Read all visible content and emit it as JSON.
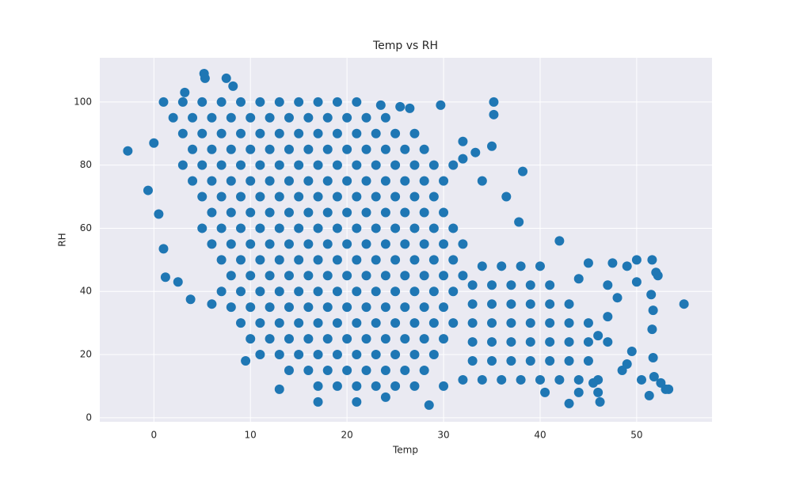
{
  "chart_data": {
    "type": "scatter",
    "title": "Temp vs RH",
    "x_label": "Temp",
    "y_label": "RH",
    "color": "#1f77b4",
    "grid": true,
    "xlim": [
      -5.6,
      57.8
    ],
    "ylim": [
      -1.3,
      114
    ],
    "xticks": [
      0,
      10,
      20,
      30,
      40,
      50
    ],
    "yticks": [
      0,
      20,
      40,
      60,
      80,
      100
    ],
    "x": [
      1,
      3,
      5,
      7,
      9,
      11,
      13,
      15,
      17,
      19,
      21,
      2,
      4,
      6,
      8,
      10,
      12,
      14,
      16,
      18,
      20,
      22,
      24,
      3,
      5,
      7,
      9,
      11,
      13,
      15,
      17,
      19,
      21,
      23,
      25,
      27,
      4,
      6,
      8,
      10,
      12,
      14,
      16,
      18,
      20,
      22,
      24,
      26,
      28,
      3,
      5,
      7,
      9,
      11,
      13,
      15,
      17,
      19,
      21,
      23,
      25,
      27,
      29,
      4,
      6,
      8,
      10,
      12,
      14,
      16,
      18,
      20,
      22,
      24,
      26,
      28,
      30,
      5,
      7,
      9,
      11,
      13,
      15,
      17,
      19,
      21,
      23,
      25,
      27,
      29,
      6,
      8,
      10,
      12,
      14,
      16,
      18,
      20,
      22,
      24,
      26,
      28,
      30,
      5,
      7,
      9,
      11,
      13,
      15,
      17,
      19,
      21,
      23,
      25,
      27,
      29,
      31,
      6,
      8,
      10,
      12,
      14,
      16,
      18,
      20,
      22,
      24,
      26,
      28,
      30,
      32,
      7,
      9,
      11,
      13,
      15,
      17,
      19,
      21,
      23,
      25,
      27,
      29,
      31,
      8,
      10,
      12,
      14,
      16,
      18,
      20,
      22,
      24,
      26,
      28,
      30,
      32,
      7,
      9,
      11,
      13,
      15,
      17,
      19,
      21,
      23,
      25,
      27,
      29,
      31,
      8,
      10,
      12,
      14,
      16,
      18,
      20,
      22,
      24,
      26,
      28,
      30,
      9,
      11,
      13,
      15,
      17,
      19,
      21,
      23,
      25,
      27,
      29,
      31,
      10,
      12,
      14,
      16,
      18,
      20,
      22,
      24,
      26,
      28,
      30,
      11,
      13,
      15,
      17,
      19,
      21,
      23,
      25,
      27,
      29,
      14,
      16,
      18,
      20,
      22,
      24,
      26,
      28,
      17,
      19,
      21,
      23,
      25,
      27,
      34,
      36,
      38,
      40,
      33,
      35,
      37,
      39,
      41,
      33,
      35,
      37,
      39,
      41,
      43,
      33,
      35,
      37,
      39,
      41,
      43,
      45,
      33,
      35,
      37,
      39,
      41,
      43,
      45,
      47,
      33,
      35,
      37,
      39,
      41,
      43,
      45,
      32,
      34,
      36,
      38,
      40,
      42,
      44,
      46,
      -2.7,
      -0.6,
      0,
      0.5,
      1.2,
      1,
      2.5,
      3.8,
      6,
      5.2,
      5.3,
      7.5,
      8.2,
      3.2,
      9.5,
      13,
      17,
      21,
      24,
      28.5,
      35.2,
      35.2,
      35,
      38.2,
      37.8,
      42,
      29.7,
      32,
      43,
      46.2,
      46,
      47.5,
      49,
      50,
      51.6,
      52,
      52.2,
      54.9,
      51.5,
      51.7,
      51.6,
      51.7,
      51.8,
      52.5,
      53,
      53.3,
      51.3,
      50.5,
      49.5,
      49,
      48.5,
      50,
      48,
      47,
      45,
      44,
      46,
      47,
      44,
      45.5,
      40.5,
      30,
      25.5,
      26.5,
      23.5,
      33.3,
      34,
      36.5,
      32,
      31
    ],
    "values": [
      100,
      100,
      100,
      100,
      100,
      100,
      100,
      100,
      100,
      100,
      100,
      95,
      95,
      95,
      95,
      95,
      95,
      95,
      95,
      95,
      95,
      95,
      95,
      90,
      90,
      90,
      90,
      90,
      90,
      90,
      90,
      90,
      90,
      90,
      90,
      90,
      85,
      85,
      85,
      85,
      85,
      85,
      85,
      85,
      85,
      85,
      85,
      85,
      85,
      80,
      80,
      80,
      80,
      80,
      80,
      80,
      80,
      80,
      80,
      80,
      80,
      80,
      80,
      75,
      75,
      75,
      75,
      75,
      75,
      75,
      75,
      75,
      75,
      75,
      75,
      75,
      75,
      70,
      70,
      70,
      70,
      70,
      70,
      70,
      70,
      70,
      70,
      70,
      70,
      70,
      65,
      65,
      65,
      65,
      65,
      65,
      65,
      65,
      65,
      65,
      65,
      65,
      65,
      60,
      60,
      60,
      60,
      60,
      60,
      60,
      60,
      60,
      60,
      60,
      60,
      60,
      60,
      55,
      55,
      55,
      55,
      55,
      55,
      55,
      55,
      55,
      55,
      55,
      55,
      55,
      55,
      50,
      50,
      50,
      50,
      50,
      50,
      50,
      50,
      50,
      50,
      50,
      50,
      50,
      45,
      45,
      45,
      45,
      45,
      45,
      45,
      45,
      45,
      45,
      45,
      45,
      45,
      40,
      40,
      40,
      40,
      40,
      40,
      40,
      40,
      40,
      40,
      40,
      40,
      40,
      35,
      35,
      35,
      35,
      35,
      35,
      35,
      35,
      35,
      35,
      35,
      35,
      30,
      30,
      30,
      30,
      30,
      30,
      30,
      30,
      30,
      30,
      30,
      30,
      25,
      25,
      25,
      25,
      25,
      25,
      25,
      25,
      25,
      25,
      25,
      20,
      20,
      20,
      20,
      20,
      20,
      20,
      20,
      20,
      20,
      15,
      15,
      15,
      15,
      15,
      15,
      15,
      15,
      10,
      10,
      10,
      10,
      10,
      10,
      48,
      48,
      48,
      48,
      42,
      42,
      42,
      42,
      42,
      36,
      36,
      36,
      36,
      36,
      36,
      30,
      30,
      30,
      30,
      30,
      30,
      30,
      24,
      24,
      24,
      24,
      24,
      24,
      24,
      24,
      18,
      18,
      18,
      18,
      18,
      18,
      18,
      12,
      12,
      12,
      12,
      12,
      12,
      12,
      12,
      84.5,
      72,
      87,
      64.5,
      44.5,
      53.5,
      43,
      37.5,
      36,
      109,
      107.5,
      107.5,
      105,
      103,
      18,
      9,
      5,
      5,
      6.5,
      4,
      100,
      96,
      86,
      78,
      62,
      56,
      99,
      87.5,
      4.5,
      5,
      8,
      49,
      48,
      50,
      50,
      46,
      45,
      36,
      39,
      34,
      28,
      19,
      13,
      11,
      9,
      9,
      7,
      12,
      21,
      17,
      15,
      43,
      38,
      42,
      49,
      44,
      26,
      32,
      8,
      11,
      8,
      10,
      98.5,
      98,
      99,
      84,
      75,
      70,
      82,
      80
    ]
  }
}
